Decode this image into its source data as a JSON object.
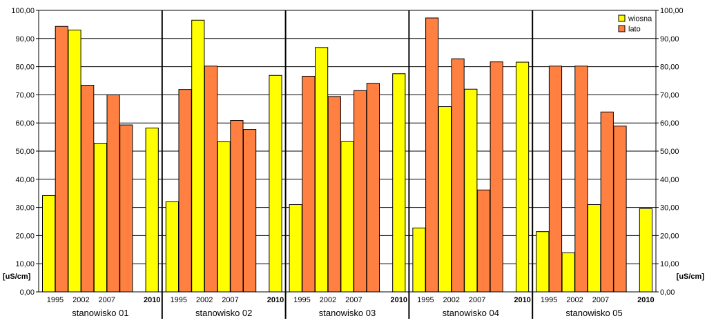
{
  "chart_data": {
    "type": "bar",
    "title": "",
    "ylabel": "[uS/cm]",
    "ylim": [
      0,
      100
    ],
    "ytick_step": 10,
    "ytick_labels": [
      "0,00",
      "10,00",
      "20,00",
      "30,00",
      "40,00",
      "50,00",
      "60,00",
      "70,00",
      "80,00",
      "90,00",
      "100,00"
    ],
    "grid": true,
    "legend_position": "top-right",
    "series": [
      {
        "name": "wiosna",
        "color": "#ffff00"
      },
      {
        "name": "lato",
        "color": "#ff8040"
      }
    ],
    "groups": [
      {
        "label": "stanowisko 01",
        "bars": [
          {
            "series": "wiosna",
            "value": 34.2
          },
          {
            "series": "lato",
            "value": 94.3
          },
          {
            "series": "wiosna",
            "value": 93.0
          },
          {
            "series": "lato",
            "value": 73.4
          },
          {
            "series": "wiosna",
            "value": 52.8
          },
          {
            "series": "lato",
            "value": 70.0
          },
          {
            "series": "lato",
            "value": 59.3
          },
          {
            "series": "none",
            "value": null
          },
          {
            "series": "wiosna",
            "value": 58.2
          }
        ]
      },
      {
        "label": "stanowisko 02",
        "bars": [
          {
            "series": "wiosna",
            "value": 32.0
          },
          {
            "series": "lato",
            "value": 71.9
          },
          {
            "series": "wiosna",
            "value": 96.5
          },
          {
            "series": "lato",
            "value": 80.2
          },
          {
            "series": "wiosna",
            "value": 53.3
          },
          {
            "series": "lato",
            "value": 60.9
          },
          {
            "series": "lato",
            "value": 57.7
          },
          {
            "series": "none",
            "value": null
          },
          {
            "series": "wiosna",
            "value": 76.9
          }
        ]
      },
      {
        "label": "stanowisko 03",
        "bars": [
          {
            "series": "wiosna",
            "value": 31.0
          },
          {
            "series": "lato",
            "value": 76.6
          },
          {
            "series": "wiosna",
            "value": 86.8
          },
          {
            "series": "lato",
            "value": 69.4
          },
          {
            "series": "wiosna",
            "value": 53.4
          },
          {
            "series": "lato",
            "value": 71.5
          },
          {
            "series": "lato",
            "value": 74.1
          },
          {
            "series": "none",
            "value": null
          },
          {
            "series": "wiosna",
            "value": 77.5
          }
        ]
      },
      {
        "label": "stanowisko 04",
        "bars": [
          {
            "series": "wiosna",
            "value": 22.7
          },
          {
            "series": "lato",
            "value": 97.3
          },
          {
            "series": "wiosna",
            "value": 65.8
          },
          {
            "series": "lato",
            "value": 82.8
          },
          {
            "series": "wiosna",
            "value": 72.0
          },
          {
            "series": "lato",
            "value": 36.2
          },
          {
            "series": "lato",
            "value": 81.7
          },
          {
            "series": "none",
            "value": null
          },
          {
            "series": "wiosna",
            "value": 81.6
          }
        ]
      },
      {
        "label": "stanowisko 05",
        "bars": [
          {
            "series": "wiosna",
            "value": 21.4
          },
          {
            "series": "lato",
            "value": 80.2
          },
          {
            "series": "wiosna",
            "value": 13.9
          },
          {
            "series": "lato",
            "value": 80.2
          },
          {
            "series": "wiosna",
            "value": 31.0
          },
          {
            "series": "lato",
            "value": 63.9
          },
          {
            "series": "lato",
            "value": 58.9
          },
          {
            "series": "none",
            "value": null
          },
          {
            "series": "wiosna",
            "value": 29.6
          }
        ]
      }
    ],
    "xtick_labels": [
      {
        "slot": 0.5,
        "text": "1995",
        "bold": false
      },
      {
        "slot": 2.5,
        "text": "2002",
        "bold": false
      },
      {
        "slot": 4.5,
        "text": "2007",
        "bold": false
      },
      {
        "slot": 8,
        "text": "2010",
        "bold": true
      }
    ]
  }
}
